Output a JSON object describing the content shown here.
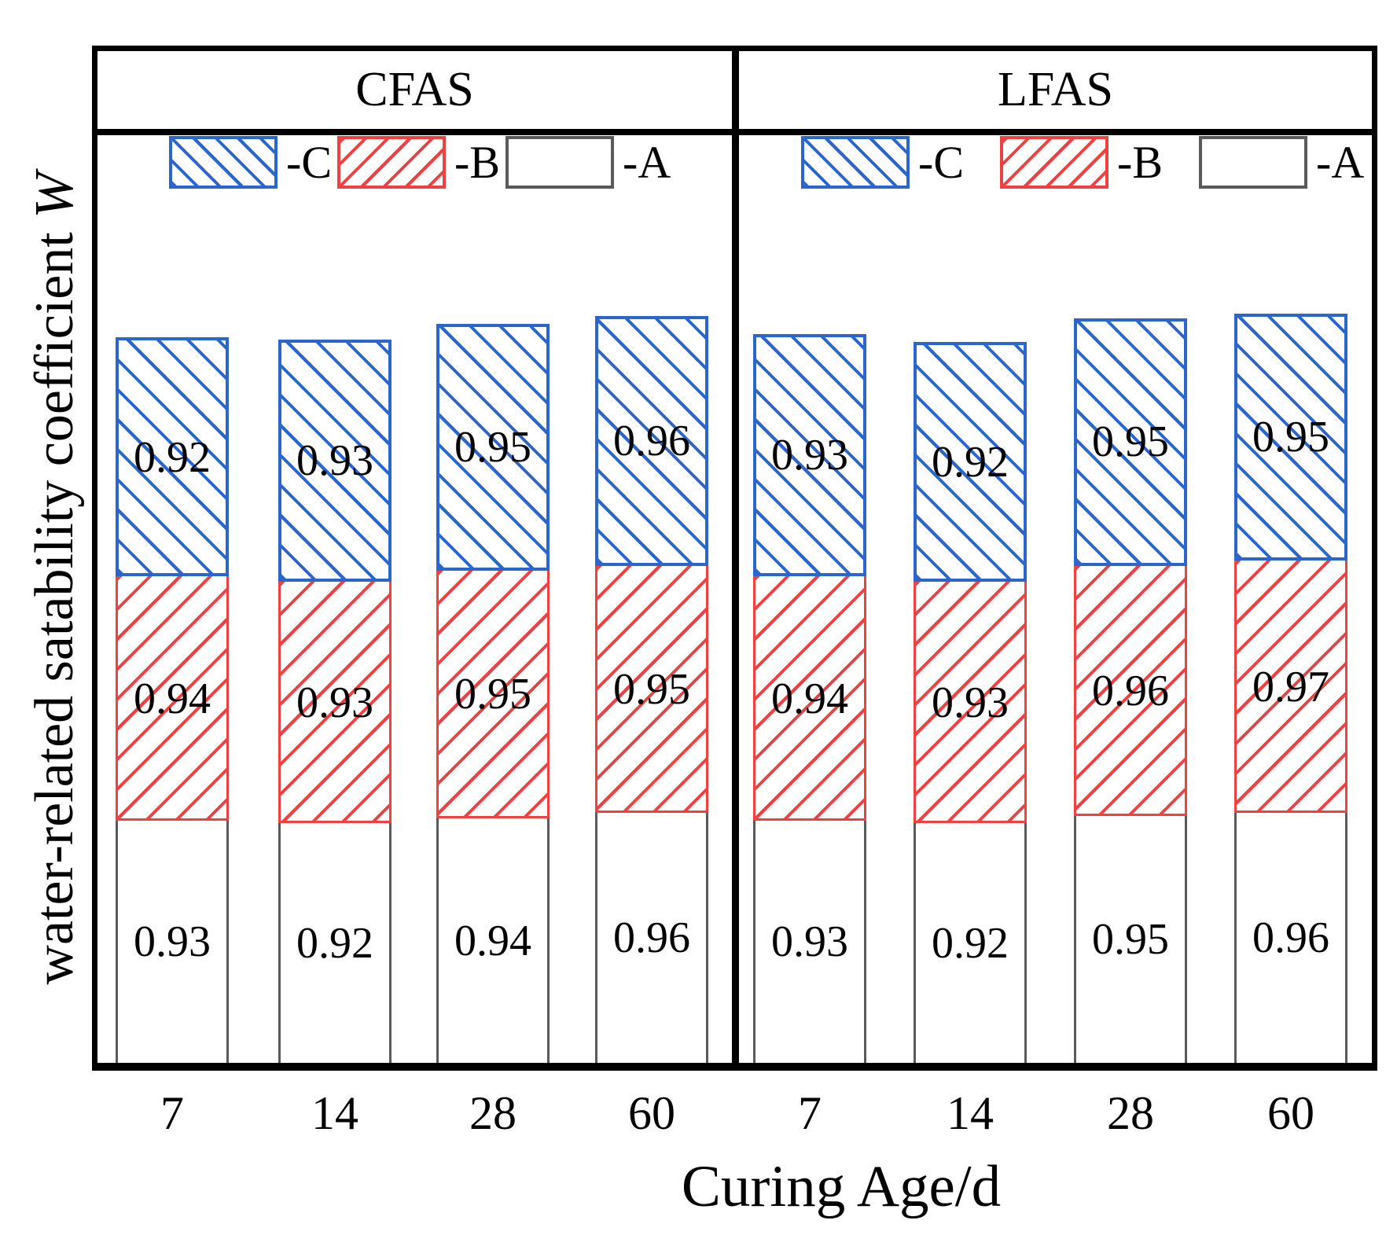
{
  "y_axis": {
    "label_main": "water-related satability coefficient ",
    "label_symbol": "W"
  },
  "x_axis": {
    "label": "Curing Age/d",
    "tick_labels": [
      "7",
      "14",
      "28",
      "60"
    ]
  },
  "colors": {
    "hatch_blue": "#2b66cc",
    "hatch_red": "#ee4141",
    "bar_outline_gray": "#5a5a5a",
    "frame_black": "#000000",
    "text_black": "#000000",
    "background": "#ffffff"
  },
  "chart_data": {
    "type": "bar",
    "stacked": true,
    "orientation": "vertical",
    "grid": "off",
    "categories": [
      "7",
      "14",
      "28",
      "60"
    ],
    "xlabel": "Curing Age/d",
    "ylabel": "water-related satability coefficient W",
    "data_labels": "inside-segment-center",
    "legend_position": "top-inside-each-panel",
    "panels": [
      {
        "name": "CFAS",
        "series": [
          {
            "name": "-A",
            "style": "plain-white",
            "values": [
              0.93,
              0.92,
              0.94,
              0.96
            ]
          },
          {
            "name": "-B",
            "style": "red-forward-hatch",
            "values": [
              0.94,
              0.93,
              0.95,
              0.95
            ]
          },
          {
            "name": "-C",
            "style": "blue-back-hatch",
            "values": [
              0.92,
              0.93,
              0.95,
              0.96
            ]
          }
        ]
      },
      {
        "name": "LFAS",
        "series": [
          {
            "name": "-A",
            "style": "plain-white",
            "values": [
              0.93,
              0.92,
              0.95,
              0.96
            ]
          },
          {
            "name": "-B",
            "style": "red-forward-hatch",
            "values": [
              0.94,
              0.93,
              0.96,
              0.97
            ]
          },
          {
            "name": "-C",
            "style": "blue-back-hatch",
            "values": [
              0.93,
              0.92,
              0.95,
              0.95
            ]
          }
        ]
      }
    ],
    "legend": [
      {
        "label": "-C",
        "style": "blue-back-hatch"
      },
      {
        "label": "-B",
        "style": "red-forward-hatch"
      },
      {
        "label": "-A",
        "style": "plain-white"
      }
    ]
  }
}
